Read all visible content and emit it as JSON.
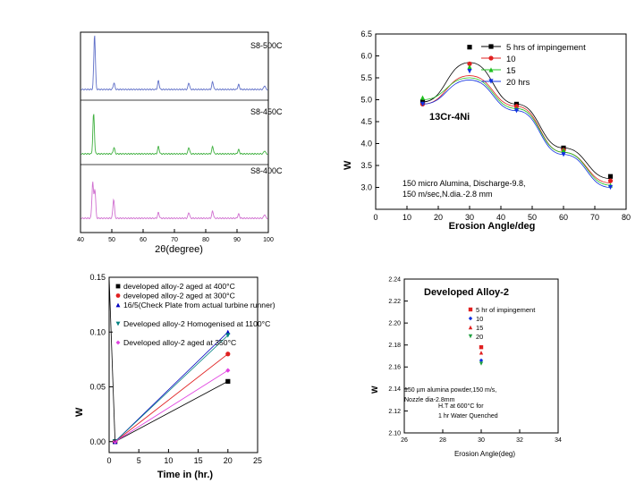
{
  "chart_data": [
    {
      "type": "line",
      "id": "xrd",
      "title": "",
      "xlabel": "2θ(degree)",
      "ylabel": "",
      "xlim": [
        40,
        100
      ],
      "xticks": [
        40,
        50,
        60,
        70,
        80,
        90,
        100
      ],
      "grid": false,
      "series": [
        {
          "name": "S8-500C",
          "color": "#6070c8",
          "peaks": [
            [
              44.5,
              1.0
            ],
            [
              50.7,
              0.12
            ],
            [
              64.9,
              0.16
            ],
            [
              74.6,
              0.12
            ],
            [
              82.2,
              0.14
            ],
            [
              90.5,
              0.09
            ],
            [
              98.8,
              0.07
            ]
          ]
        },
        {
          "name": "S8-450C",
          "color": "#40b040",
          "peaks": [
            [
              44.2,
              0.75
            ],
            [
              50.7,
              0.12
            ],
            [
              64.9,
              0.14
            ],
            [
              74.6,
              0.12
            ],
            [
              82.2,
              0.14
            ],
            [
              90.5,
              0.08
            ],
            [
              98.8,
              0.06
            ]
          ]
        },
        {
          "name": "S8-400C",
          "color": "#d070d0",
          "peaks": [
            [
              43.9,
              0.75
            ],
            [
              44.6,
              0.6
            ],
            [
              50.6,
              0.4
            ],
            [
              64.9,
              0.12
            ],
            [
              74.6,
              0.12
            ],
            [
              82.2,
              0.15
            ],
            [
              90.5,
              0.09
            ],
            [
              98.8,
              0.08
            ]
          ]
        }
      ]
    },
    {
      "type": "line",
      "id": "erosion-angle",
      "title": "",
      "xlabel": "Erosion Angle/deg",
      "ylabel": "W",
      "xlim": [
        0,
        80
      ],
      "ylim": [
        2.5,
        6.5
      ],
      "xticks": [
        0,
        10,
        20,
        30,
        40,
        50,
        60,
        70,
        80
      ],
      "yticks": [
        3.0,
        3.5,
        4.0,
        4.5,
        5.0,
        5.5,
        6.0,
        6.5
      ],
      "ytick_labels": [
        "3.0",
        "3.5",
        "4.0",
        "4.5",
        "5.0",
        "5.5",
        "6.0",
        "6.5"
      ],
      "grid": false,
      "annotation_material": "13Cr-4Ni",
      "annotation_conditions_1": "150 micro Alumina, Discharge-9.8,",
      "annotation_conditions_2": "150 m/sec,N.dia.-2.8 mm",
      "categories": [
        15,
        30,
        45,
        60,
        75
      ],
      "series": [
        {
          "name": "5 hrs of impingement",
          "color": "#000000",
          "marker": "square",
          "values": [
            4.95,
            6.2,
            4.9,
            3.9,
            3.25
          ],
          "fit": [
            4.95,
            5.85,
            4.9,
            3.9,
            3.2
          ]
        },
        {
          "name": "10",
          "color": "#e02020",
          "marker": "circle",
          "values": [
            4.9,
            5.82,
            4.85,
            3.85,
            3.15
          ],
          "fit": [
            4.9,
            5.55,
            4.85,
            3.8,
            3.1
          ]
        },
        {
          "name": "15",
          "color": "#20c020",
          "marker": "triangle-up",
          "values": [
            5.05,
            5.75,
            4.8,
            3.85,
            3.05
          ],
          "fit": [
            5.0,
            5.5,
            4.8,
            3.8,
            3.05
          ]
        },
        {
          "name": "20 hrs",
          "color": "#1030e0",
          "marker": "triangle-down",
          "values": [
            4.9,
            5.65,
            4.75,
            3.75,
            3.0
          ],
          "fit": [
            4.9,
            5.45,
            4.75,
            3.75,
            3.0
          ]
        }
      ]
    },
    {
      "type": "line",
      "id": "time-loss",
      "title": "",
      "xlabel": "Time in (hr.)",
      "ylabel": "W",
      "xlim": [
        0,
        25
      ],
      "ylim": [
        -0.01,
        0.15
      ],
      "xticks": [
        0,
        5,
        10,
        15,
        20,
        25
      ],
      "yticks": [
        0.0,
        0.05,
        0.1,
        0.15
      ],
      "ytick_labels": [
        "0.00",
        "0.05",
        "0.10",
        "0.15"
      ],
      "grid": false,
      "series": [
        {
          "name": "developed alloy-2 aged at 400°C",
          "color": "#000000",
          "marker": "square",
          "x": [
            1,
            20
          ],
          "values": [
            0.0,
            0.055
          ]
        },
        {
          "name": "developed alloy-2 aged at 300°C",
          "color": "#e02020",
          "marker": "circle",
          "x": [
            1,
            20
          ],
          "values": [
            0.0,
            0.08
          ]
        },
        {
          "name": "16/5(Check Plate from actual turbine runner)",
          "color": "#0000c0",
          "marker": "triangle-up",
          "x": [
            1,
            20
          ],
          "values": [
            0.0,
            0.1
          ]
        },
        {
          "name": "Developed alloy-2 Homogenised at 1100°C",
          "color": "#008080",
          "marker": "triangle-down",
          "x": [
            1,
            20
          ],
          "values": [
            0.0,
            0.097
          ]
        },
        {
          "name": "Developed alloy-2 aged at 350°C",
          "color": "#e040e0",
          "marker": "diamond",
          "x": [
            1,
            20
          ],
          "values": [
            0.0,
            0.065
          ]
        }
      ]
    },
    {
      "type": "scatter",
      "id": "alloy2",
      "title": "Developed Alloy-2",
      "xlabel": "Erosion Angle(deg)",
      "ylabel": "W",
      "xlim": [
        26,
        34
      ],
      "ylim": [
        2.1,
        2.24
      ],
      "xticks": [
        26,
        28,
        30,
        32,
        34
      ],
      "yticks": [
        2.1,
        2.12,
        2.14,
        2.16,
        2.18,
        2.2,
        2.22,
        2.24
      ],
      "ytick_labels": [
        "2.10",
        "2.12",
        "2.14",
        "2.16",
        "2.18",
        "2.20",
        "2.22",
        "2.24"
      ],
      "grid": false,
      "annotation_conditions_1": "150 µm alumina powder,150 m/s,",
      "annotation_conditions_2": "Nozzle dia-2.8mm",
      "annotation_ht_1": "H.T at 600°C for",
      "annotation_ht_2": "1 hr Water Quenched",
      "series": [
        {
          "name": "5 hr of impingement",
          "color": "#e02020",
          "marker": "square",
          "x": [
            30
          ],
          "values": [
            2.178
          ]
        },
        {
          "name": "10",
          "color": "#1030e0",
          "marker": "diamond",
          "x": [
            30
          ],
          "values": [
            2.166
          ]
        },
        {
          "name": "15",
          "color": "#e02020",
          "marker": "triangle-up",
          "x": [
            30
          ],
          "values": [
            2.173
          ]
        },
        {
          "name": "20",
          "color": "#20a040",
          "marker": "triangle-down",
          "x": [
            30
          ],
          "values": [
            2.163
          ]
        }
      ]
    }
  ]
}
